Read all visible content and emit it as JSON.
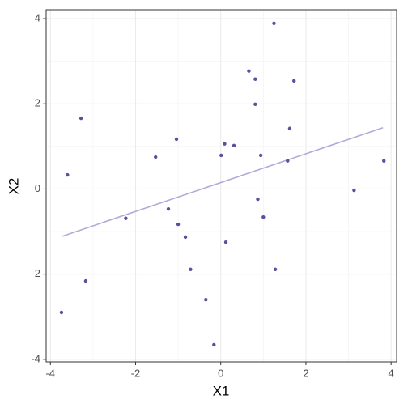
{
  "chart_data": {
    "type": "scatter",
    "x_label": "X1",
    "y_label": "X2",
    "series": [
      {
        "color": "#5b4f9e",
        "x": [
          -3.74,
          -3.6,
          -3.28,
          -3.17,
          -2.23,
          -1.53,
          -1.23,
          -1.04,
          -1.0,
          -0.83,
          -0.71,
          -0.35,
          -0.16,
          0.01,
          0.09,
          0.12,
          0.31,
          0.66,
          0.81,
          0.81,
          0.87,
          0.94,
          1.0,
          1.25,
          1.28,
          1.57,
          1.62,
          1.72,
          3.13,
          3.83
        ],
        "values": [
          -2.9,
          0.33,
          1.66,
          -2.16,
          -0.69,
          0.75,
          -0.47,
          1.17,
          -0.83,
          -1.13,
          -1.89,
          -2.6,
          -3.66,
          0.79,
          1.06,
          -1.25,
          1.02,
          2.77,
          2.58,
          1.99,
          -0.24,
          0.79,
          -0.66,
          3.89,
          -1.89,
          0.66,
          1.42,
          2.54,
          -0.03,
          0.66
        ]
      }
    ],
    "fit_line": {
      "color": "#b3a9d9",
      "x": [
        -3.72,
        3.81
      ],
      "values": [
        -1.11,
        1.44
      ]
    },
    "xlim": [
      -4.1,
      4.13
    ],
    "ylim": [
      -4.06,
      4.21
    ],
    "xticks": [
      -4,
      -2,
      0,
      2,
      4
    ],
    "yticks": [
      -4,
      -2,
      0,
      2,
      4
    ],
    "xminor": [
      -3,
      -1,
      1,
      3
    ],
    "yminor": [
      -3,
      -1,
      1,
      3
    ],
    "grid": true
  }
}
